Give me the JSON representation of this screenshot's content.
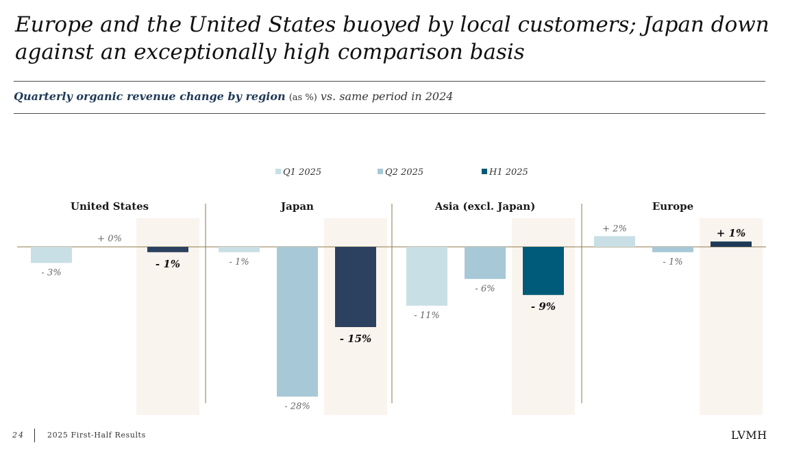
{
  "title": "Europe and the United States buoyed by local customers; Japan down against an exceptionally high comparison basis",
  "subtitle": {
    "bold": "Quarterly organic revenue change by region",
    "unit": "(as %)",
    "tail": "vs. same period in 2024"
  },
  "footer": {
    "page": "24",
    "text": "2025 First-Half Results",
    "brand": "LVMH"
  },
  "colors": {
    "q1": "#c8dfe5",
    "q2": "#a7c8d6",
    "h1_us_japan": "#2c4160",
    "h1_asia": "#005a7a",
    "h1_europe": "#1f3a57",
    "highlight": "#faf4ef",
    "divider": "#8b7a4a",
    "baseline": "#8b7a4a"
  },
  "chart_data": {
    "type": "bar",
    "title": "",
    "series_labels": [
      "Q1 2025",
      "Q2 2025",
      "H1 2025"
    ],
    "legend_position": "top-center",
    "ylim": [
      -30,
      5
    ],
    "groups": [
      {
        "name": "United States",
        "bars": [
          {
            "series": "Q1 2025",
            "value": -3,
            "label": "- 3%"
          },
          {
            "series": "Q2 2025",
            "value": 0,
            "label": "+ 0%"
          },
          {
            "series": "H1 2025",
            "value": -1,
            "label": "- 1%"
          }
        ]
      },
      {
        "name": "Japan",
        "bars": [
          {
            "series": "Q1 2025",
            "value": -1,
            "label": "- 1%"
          },
          {
            "series": "Q2 2025",
            "value": -28,
            "label": "- 28%"
          },
          {
            "series": "H1 2025",
            "value": -15,
            "label": "- 15%"
          }
        ]
      },
      {
        "name": "Asia (excl. Japan)",
        "bars": [
          {
            "series": "Q1 2025",
            "value": -11,
            "label": "- 11%"
          },
          {
            "series": "Q2 2025",
            "value": -6,
            "label": "- 6%"
          },
          {
            "series": "H1 2025",
            "value": -9,
            "label": "- 9%"
          }
        ]
      },
      {
        "name": "Europe",
        "bars": [
          {
            "series": "Q1 2025",
            "value": 2,
            "label": "+ 2%"
          },
          {
            "series": "Q2 2025",
            "value": -1,
            "label": "- 1%"
          },
          {
            "series": "H1 2025",
            "value": 1,
            "label": "+ 1%"
          }
        ]
      }
    ]
  }
}
